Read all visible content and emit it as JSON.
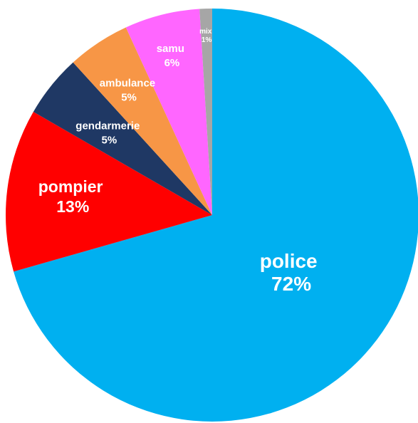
{
  "chart_data": {
    "type": "pie",
    "start_angle_deg": 0,
    "direction": "clockwise",
    "slices": [
      {
        "label": "police",
        "percent_label": "72%",
        "value": 72,
        "color": "#00B0F0",
        "label_color": "#ffffff"
      },
      {
        "label": "pompier",
        "percent_label": "13%",
        "value": 13,
        "color": "#FF0000",
        "label_color": "#ffffff"
      },
      {
        "label": "gendarmerie",
        "percent_label": "5%",
        "value": 5,
        "color": "#1F3864",
        "label_color": "#ffffff"
      },
      {
        "label": "ambulance",
        "percent_label": "5%",
        "value": 5,
        "color": "#F79646",
        "label_color": "#ffffff"
      },
      {
        "label": "samu",
        "percent_label": "6%",
        "value": 6,
        "color": "#FF66FF",
        "label_color": "#ffffff"
      },
      {
        "label": "mix",
        "percent_label": "1%",
        "value": 1,
        "color": "#A6A6A6",
        "label_color": "#ffffff"
      }
    ]
  }
}
